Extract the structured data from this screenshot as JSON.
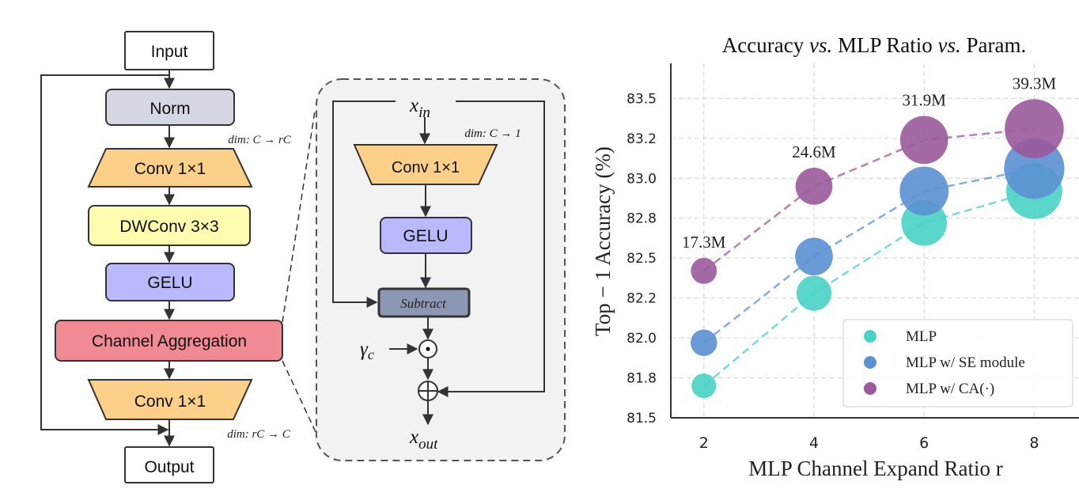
{
  "block_diagram": {
    "input_label": "Input",
    "output_label": "Output",
    "norm_label": "Norm",
    "conv_in_label": "Conv 1×1",
    "dwconv_label": "DWConv 3×3",
    "gelu_label": "GELU",
    "ca_label": "Channel Aggregation",
    "conv_out_label": "Conv 1×1",
    "dim_in_label": "dim: C → rC",
    "dim_out_label": "dim: rC → C",
    "colors": {
      "norm": "#d5d8e2",
      "conv": "#fdd089",
      "dwconv": "#fdfbae",
      "gelu": "#b9b9fb",
      "ca": "#f08b93"
    }
  },
  "ca_detail": {
    "x_in": "x",
    "x_in_sub": "in",
    "x_out": "x",
    "x_out_sub": "out",
    "dim_label": "dim: C → 1",
    "conv_label": "Conv 1×1",
    "gelu_label": "GELU",
    "subtract_label": "Subtract",
    "gamma": "γ",
    "gamma_sub": "c",
    "multiply_symbol": "odot-icon",
    "add_symbol": "oplus-icon",
    "colors": {
      "panel": "#f2f2f2",
      "subtract": "#8b97b3"
    }
  },
  "chart_data": {
    "type": "scatter",
    "title_parts": [
      "Accuracy ",
      "vs.",
      " MLP Ratio ",
      "vs.",
      " Param."
    ],
    "xlabel": "MLP Channel Expand Ratio r",
    "ylabel": "Top − 1 Accuracy (%)",
    "x": [
      2,
      4,
      6,
      8
    ],
    "xticks": [
      "2",
      "4",
      "6",
      "8"
    ],
    "xlim": [
      1.4,
      9.1
    ],
    "ylim": [
      81.5,
      83.72
    ],
    "yticks": [
      81.5,
      81.75,
      82.0,
      82.25,
      82.5,
      82.75,
      83.0,
      83.25,
      83.5
    ],
    "ytick_labels": [
      "81.5",
      "81.8",
      "82.0",
      "82.2",
      "82.5",
      "82.8",
      "83.0",
      "83.2",
      "83.5"
    ],
    "grid": true,
    "legend_position": "bottom-right",
    "param_labels": [
      "17.3M",
      "24.6M",
      "31.9M",
      "39.3M"
    ],
    "params_m": [
      17.3,
      24.6,
      31.9,
      39.3
    ],
    "series": [
      {
        "name": "MLP",
        "values": [
          81.7,
          82.28,
          82.72,
          82.92
        ],
        "color": "#48d1c5"
      },
      {
        "name": "MLP w/ SE module",
        "values": [
          81.97,
          82.51,
          82.92,
          83.06
        ],
        "color": "#5b90d2"
      },
      {
        "name": "MLP w/ CA(·)",
        "values": [
          82.42,
          82.95,
          83.24,
          83.31
        ],
        "color": "#9a5a9b"
      }
    ]
  }
}
